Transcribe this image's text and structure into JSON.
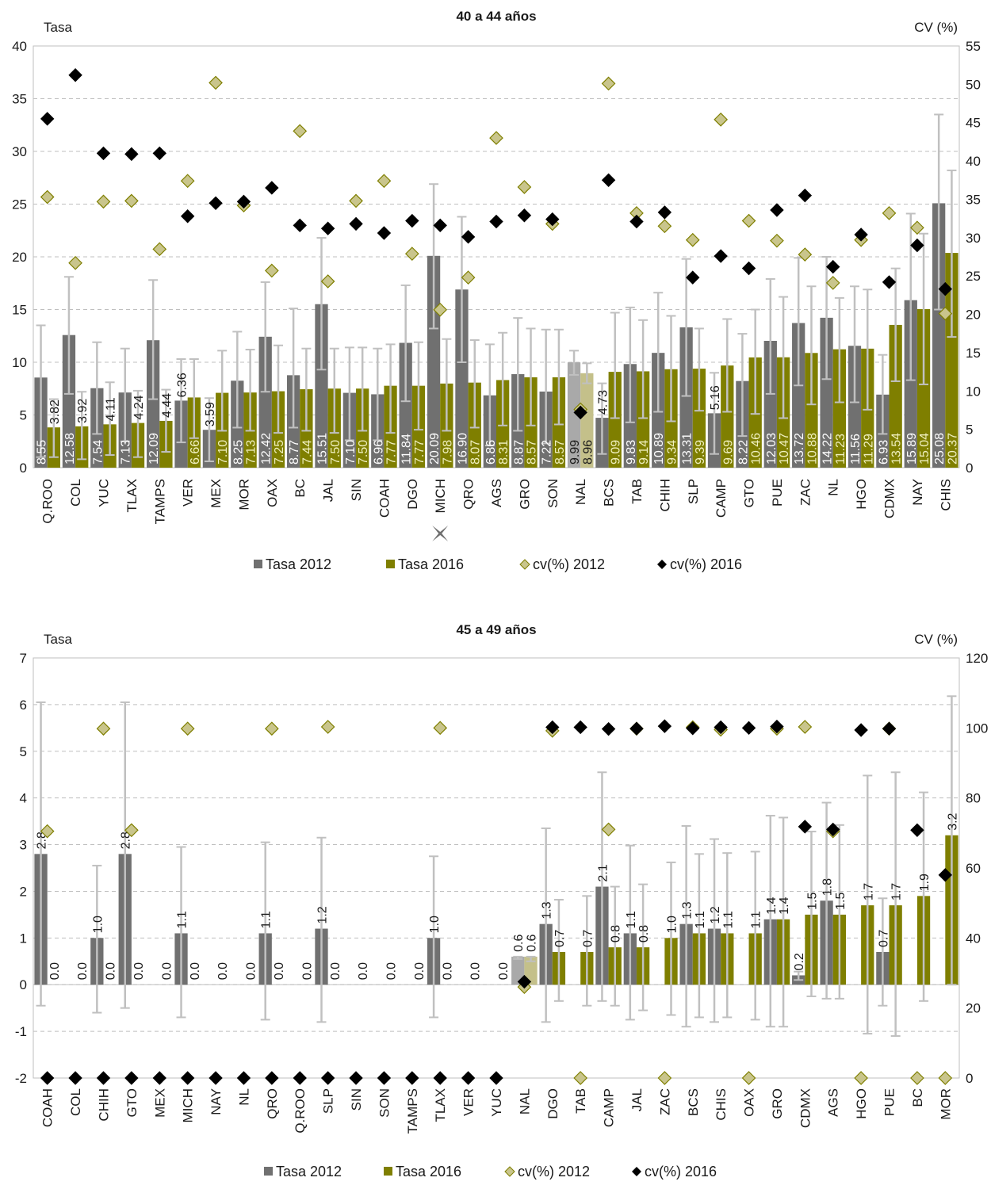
{
  "colors": {
    "tasa2012": "#707070",
    "tasa2012_nal": "#a9a9a9",
    "tasa2016": "#7f7f00",
    "tasa2016_nal": "#c4c08a",
    "cv2012_fill": "#c9c58c",
    "cv2012_stroke": "#7f7f00",
    "cv2016": "#000000",
    "errorbar": "#c0c0c0",
    "grid": "#bfbfbf"
  },
  "chart_data": [
    {
      "type": "bar",
      "title": "40 a 44 años",
      "ylabel_left": "Tasa",
      "ylabel_right": "CV (%)",
      "ylim": [
        0,
        40
      ],
      "ylim_right": [
        0,
        55
      ],
      "yticks": [
        0,
        5,
        10,
        15,
        20,
        25,
        30,
        35,
        40
      ],
      "yticks_right": [
        0,
        5,
        10,
        15,
        20,
        25,
        30,
        35,
        40,
        45,
        50,
        55
      ],
      "grid": true,
      "highlight_category": "NAL",
      "marker_below": "MICH",
      "categories": [
        "Q.ROO",
        "COL",
        "YUC",
        "TLAX",
        "TAMPS",
        "VER",
        "MEX",
        "MOR",
        "OAX",
        "BC",
        "JAL",
        "SIN",
        "COAH",
        "DGO",
        "MICH",
        "QRO",
        "AGS",
        "GRO",
        "SON",
        "NAL",
        "BCS",
        "TAB",
        "CHIH",
        "SLP",
        "CAMP",
        "GTO",
        "PUE",
        "ZAC",
        "NL",
        "HGO",
        "CDMX",
        "NAY",
        "CHIS"
      ],
      "series": [
        {
          "name": "Tasa 2012",
          "kind": "bar",
          "values": [
            8.55,
            12.58,
            7.54,
            7.13,
            12.09,
            6.36,
            3.59,
            8.25,
            12.42,
            8.77,
            15.51,
            7.1,
            6.96,
            11.84,
            20.09,
            16.9,
            6.86,
            8.87,
            7.22,
            9.99,
            4.73,
            9.83,
            10.89,
            13.31,
            5.16,
            8.22,
            12.03,
            13.72,
            14.22,
            11.56,
            6.93,
            15.89,
            25.08
          ],
          "labels": [
            "8.55",
            "12.58",
            "7.54",
            "7.13",
            "12.09",
            "6.36",
            "3.59",
            "8.25",
            "12.42",
            "8.77",
            "15.51",
            "7.10",
            "6.96",
            "11.84",
            "20.09",
            "16.90",
            "6.86",
            "8.87",
            "7.22",
            "9.99",
            "4.73",
            "9.83",
            "10.89",
            "13.31",
            "5.16",
            "8.22",
            "12.03",
            "13.72",
            "14.22",
            "11.56",
            "6.93",
            "15.89",
            "25.08"
          ],
          "err_low": [
            1.0,
            7.0,
            3.2,
            2.5,
            6.5,
            2.4,
            0.6,
            3.8,
            7.2,
            3.8,
            9.3,
            2.6,
            2.6,
            6.3,
            13.2,
            10.0,
            2.1,
            3.5,
            2.3,
            8.8,
            1.3,
            4.3,
            5.3,
            6.8,
            1.3,
            3.0,
            7.0,
            7.8,
            8.4,
            6.2,
            3.2,
            8.3,
            15.0
          ],
          "err_high": [
            13.5,
            18.1,
            11.9,
            11.3,
            17.8,
            10.3,
            6.6,
            12.9,
            17.6,
            15.1,
            21.8,
            11.4,
            11.3,
            17.3,
            26.9,
            23.8,
            11.7,
            14.2,
            13.1,
            11.1,
            8.0,
            15.2,
            16.6,
            19.8,
            9.0,
            12.7,
            17.9,
            19.9,
            20.0,
            17.2,
            10.7,
            24.1,
            33.5
          ]
        },
        {
          "name": "Tasa 2016",
          "kind": "bar",
          "values": [
            3.82,
            3.92,
            4.11,
            4.24,
            4.44,
            6.66,
            7.1,
            7.13,
            7.25,
            7.44,
            7.5,
            7.5,
            7.77,
            7.77,
            7.98,
            8.07,
            8.31,
            8.57,
            8.57,
            8.96,
            9.09,
            9.14,
            9.34,
            9.39,
            9.69,
            10.46,
            10.47,
            10.88,
            11.23,
            11.29,
            13.54,
            15.04,
            20.37
          ],
          "labels": [
            "3.82",
            "3.92",
            "4.11",
            "4.24",
            "4.44",
            "6.66",
            "7.10",
            "7.13",
            "7.25",
            "7.44",
            "7.50",
            "7.50",
            "7.77",
            "7.77",
            "7.98",
            "8.07",
            "8.31",
            "8.57",
            "8.57",
            "8.96",
            "9.09",
            "9.14",
            "9.34",
            "9.39",
            "9.69",
            "10.46",
            "10.47",
            "10.88",
            "11.23",
            "11.29",
            "13.54",
            "15.04",
            "20.37"
          ],
          "err_low": [
            1.0,
            0.8,
            1.2,
            1.0,
            1.5,
            2.8,
            3.5,
            3.5,
            3.3,
            3.5,
            3.3,
            3.5,
            3.3,
            3.6,
            3.5,
            3.8,
            4.0,
            4.0,
            4.1,
            8.0,
            4.7,
            4.7,
            4.4,
            5.4,
            5.3,
            5.1,
            4.7,
            6.0,
            6.2,
            5.5,
            8.2,
            7.9,
            12.4
          ],
          "err_high": [
            6.5,
            7.2,
            8.1,
            7.3,
            7.4,
            10.3,
            11.1,
            11.2,
            11.6,
            11.3,
            11.3,
            11.4,
            11.7,
            11.9,
            12.2,
            12.1,
            12.8,
            13.2,
            13.1,
            9.9,
            14.7,
            14.0,
            14.4,
            13.2,
            14.1,
            15.0,
            16.2,
            17.2,
            16.1,
            16.9,
            18.9,
            22.2,
            28.2
          ]
        },
        {
          "name": "cv(%) 2012",
          "kind": "marker",
          "axis": "right",
          "values": [
            35.3,
            26.7,
            34.7,
            34.8,
            28.5,
            37.4,
            50.2,
            34.2,
            25.7,
            43.9,
            24.3,
            34.8,
            37.4,
            27.9,
            20.6,
            24.8,
            43.0,
            36.6,
            31.8,
            7.6,
            50.1,
            33.2,
            31.5,
            29.7,
            45.4,
            32.2,
            29.6,
            27.8,
            24.1,
            29.7,
            33.2,
            31.3,
            20.1
          ]
        },
        {
          "name": "cv(%) 2016",
          "kind": "marker",
          "axis": "right",
          "values": [
            45.5,
            51.2,
            41.0,
            40.9,
            41.0,
            32.8,
            34.5,
            34.7,
            36.5,
            31.6,
            31.2,
            31.8,
            30.6,
            32.2,
            31.6,
            30.1,
            32.1,
            32.9,
            32.4,
            7.2,
            37.5,
            32.1,
            33.3,
            24.8,
            27.6,
            26.0,
            33.6,
            35.5,
            26.2,
            30.4,
            24.2,
            29.0,
            23.3
          ]
        }
      ],
      "legend": [
        "Tasa 2012",
        "Tasa 2016",
        "cv(%) 2012",
        "cv(%) 2016"
      ]
    },
    {
      "type": "bar",
      "title": "45 a 49 años",
      "ylabel_left": "Tasa",
      "ylabel_right": "CV (%)",
      "ylim": [
        -2,
        7
      ],
      "ylim_right": [
        0,
        120
      ],
      "yticks": [
        -2,
        -1,
        0,
        1,
        2,
        3,
        4,
        5,
        6,
        7
      ],
      "yticks_right": [
        0,
        20,
        40,
        60,
        80,
        100,
        120
      ],
      "grid": true,
      "highlight_category": "NAL",
      "categories": [
        "COAH",
        "COL",
        "CHIH",
        "GTO",
        "MEX",
        "MICH",
        "NAY",
        "NL",
        "QRO",
        "Q.ROO",
        "SLP",
        "SIN",
        "SON",
        "TAMPS",
        "TLAX",
        "VER",
        "YUC",
        "NAL",
        "DGO",
        "TAB",
        "CAMP",
        "JAL",
        "ZAC",
        "BCS",
        "CHIS",
        "OAX",
        "GRO",
        "CDMX",
        "AGS",
        "HGO",
        "PUE",
        "BC",
        "MOR"
      ],
      "series": [
        {
          "name": "Tasa 2012",
          "kind": "bar",
          "values": [
            2.8,
            0.0,
            1.0,
            2.8,
            0.0,
            1.1,
            0.0,
            0.0,
            1.1,
            0.0,
            1.2,
            0.0,
            0.0,
            0.0,
            1.0,
            0.0,
            0.0,
            0.6,
            1.3,
            0.0,
            2.1,
            1.1,
            0.0,
            1.3,
            1.2,
            0.0,
            1.4,
            0.2,
            1.8,
            0.0,
            0.7,
            0.0,
            0.0
          ],
          "labels": [
            "2.8",
            "",
            "1.0",
            "2.8",
            "",
            "1.1",
            "",
            "",
            "1.1",
            "",
            "1.2",
            "",
            "",
            "",
            "1.0",
            "",
            "",
            "0.6",
            "1.3",
            "",
            "2.1",
            "1.1",
            "",
            "1.3",
            "1.2",
            "",
            "1.4",
            "0.2",
            "1.8",
            "",
            "0.7",
            "",
            ""
          ],
          "err_low": [
            -0.45,
            null,
            -0.6,
            -0.5,
            null,
            -0.7,
            null,
            null,
            -0.75,
            null,
            -0.8,
            null,
            null,
            null,
            -0.7,
            null,
            null,
            0.55,
            -0.8,
            null,
            -0.35,
            -0.75,
            null,
            -0.9,
            -0.8,
            null,
            -0.9,
            0.1,
            -0.3,
            null,
            -0.45,
            null,
            null
          ],
          "err_high": [
            6.05,
            null,
            2.55,
            6.05,
            null,
            2.95,
            null,
            null,
            3.05,
            null,
            3.15,
            null,
            null,
            null,
            2.75,
            null,
            null,
            0.6,
            3.35,
            null,
            4.55,
            2.98,
            null,
            3.4,
            3.12,
            null,
            3.62,
            0.28,
            3.9,
            null,
            1.85,
            null,
            null
          ]
        },
        {
          "name": "Tasa 2016",
          "kind": "bar",
          "values": [
            0.0,
            0.0,
            0.0,
            0.0,
            0.0,
            0.0,
            0.0,
            0.0,
            0.0,
            0.0,
            0.0,
            0.0,
            0.0,
            0.0,
            0.0,
            0.0,
            0.0,
            0.6,
            0.7,
            0.7,
            0.8,
            0.8,
            1.0,
            1.1,
            1.1,
            1.1,
            1.4,
            1.5,
            1.5,
            1.7,
            1.7,
            1.9,
            3.2
          ],
          "labels": [
            "0.0",
            "0.0",
            "0.0",
            "0.0",
            "0.0",
            "0.0",
            "0.0",
            "0.0",
            "0.0",
            "0.0",
            "0.0",
            "0.0",
            "0.0",
            "0.0",
            "0.0",
            "0.0",
            "0.0",
            "0.6",
            "0.7",
            "0.7",
            "0.8",
            "0.8",
            "1.0",
            "1.1",
            "1.1",
            "1.1",
            "1.4",
            "1.5",
            "1.5",
            "1.7",
            "1.7",
            "1.9",
            "3.2"
          ],
          "err_low": [
            null,
            null,
            null,
            null,
            null,
            null,
            null,
            null,
            null,
            null,
            null,
            null,
            null,
            null,
            null,
            null,
            null,
            0.5,
            -0.35,
            -0.45,
            -0.45,
            -0.55,
            -0.65,
            -0.7,
            -0.7,
            -0.75,
            -0.9,
            -0.25,
            -0.3,
            -1.05,
            -1.1,
            -0.35,
            0.0
          ],
          "err_high": [
            null,
            null,
            null,
            null,
            null,
            null,
            null,
            null,
            null,
            null,
            null,
            null,
            null,
            null,
            null,
            null,
            null,
            0.6,
            1.82,
            1.9,
            2.1,
            2.15,
            2.62,
            2.8,
            2.82,
            2.85,
            3.58,
            3.28,
            3.42,
            4.48,
            4.55,
            4.12,
            6.18
          ]
        },
        {
          "name": "cv(%) 2012",
          "kind": "marker",
          "axis": "right",
          "values": [
            70.5,
            null,
            99.8,
            70.8,
            null,
            99.8,
            null,
            null,
            99.8,
            null,
            100.3,
            null,
            null,
            null,
            100.0,
            null,
            null,
            26.0,
            99.2,
            0.0,
            71.0,
            99.8,
            0.0,
            100.2,
            99.5,
            0.0,
            99.8,
            100.3,
            70.5,
            0.0,
            99.8,
            0.0,
            0.0
          ]
        },
        {
          "name": "cv(%) 2016",
          "kind": "marker",
          "axis": "right",
          "values": [
            0.0,
            0.0,
            0.0,
            0.0,
            0.0,
            0.0,
            0.0,
            0.0,
            0.0,
            0.0,
            0.0,
            0.0,
            0.0,
            0.0,
            0.0,
            0.0,
            0.0,
            27.5,
            100.2,
            100.2,
            99.7,
            99.8,
            100.5,
            99.9,
            100.2,
            100.0,
            100.4,
            71.8,
            71.0,
            99.4,
            99.8,
            70.8,
            58.0
          ]
        }
      ],
      "legend": [
        "Tasa 2012",
        "Tasa 2016",
        "cv(%) 2012",
        "cv(%) 2016"
      ]
    }
  ]
}
